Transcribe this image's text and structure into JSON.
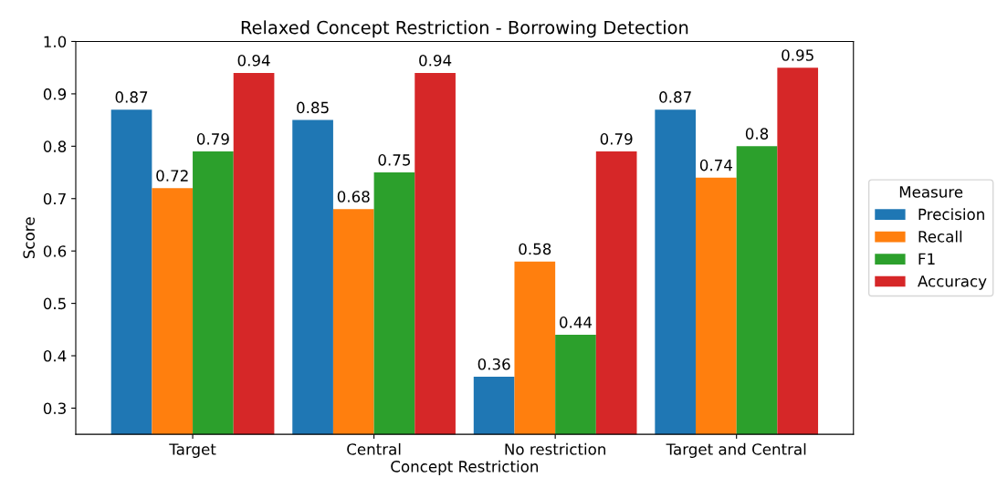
{
  "chart_data": {
    "type": "bar",
    "title": "Relaxed Concept Restriction - Borrowing Detection",
    "xlabel": "Concept Restriction",
    "ylabel": "Score",
    "legend_title": "Measure",
    "categories": [
      "Target",
      "Central",
      "No restriction",
      "Target and Central"
    ],
    "series": [
      {
        "name": "Precision",
        "color": "#1f77b4",
        "values": [
          0.87,
          0.85,
          0.36,
          0.87
        ]
      },
      {
        "name": "Recall",
        "color": "#ff7f0e",
        "values": [
          0.72,
          0.68,
          0.58,
          0.74
        ]
      },
      {
        "name": "F1",
        "color": "#2ca02c",
        "values": [
          0.79,
          0.75,
          0.44,
          0.8
        ]
      },
      {
        "name": "Accuracy",
        "color": "#d62728",
        "values": [
          0.94,
          0.94,
          0.79,
          0.95
        ]
      }
    ],
    "ylim": [
      0.25,
      1.0
    ],
    "yticks": [
      0.3,
      0.4,
      0.5,
      0.6,
      0.7,
      0.8,
      0.9,
      {
        "value": 1.0,
        "label": "1.0"
      }
    ],
    "data_labels": true,
    "legend": "right",
    "grid": false
  }
}
